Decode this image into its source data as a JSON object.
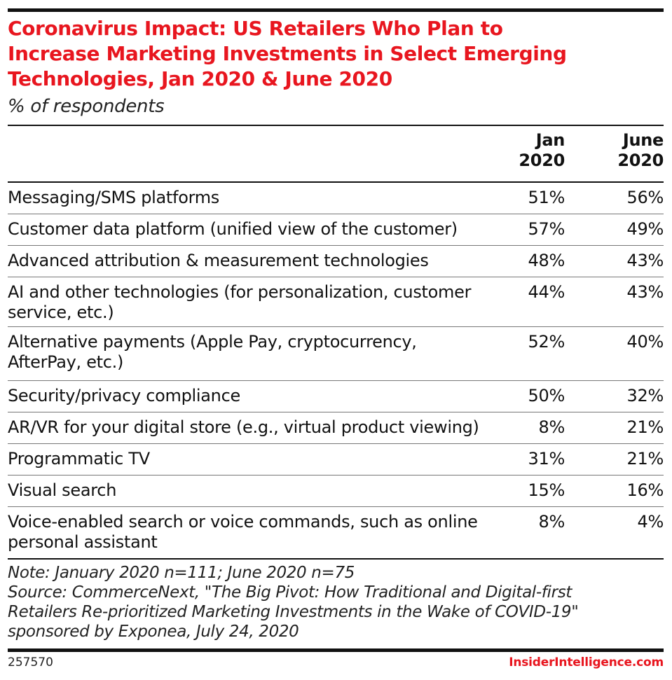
{
  "chart_data": {
    "type": "table",
    "title_lines": [
      "Coronavirus Impact: US Retailers Who Plan to",
      "Increase Marketing Investments in Select Emerging",
      "Technologies, Jan 2020 & June 2020"
    ],
    "subtitle": "% of respondents",
    "columns": [
      {
        "line1": "Jan",
        "line2": "2020"
      },
      {
        "line1": "June",
        "line2": "2020"
      }
    ],
    "rows": [
      {
        "label_lines": [
          "Messaging/SMS platforms"
        ],
        "jan": "51%",
        "june": "56%"
      },
      {
        "label_lines": [
          "Customer data platform (unified view of the customer)"
        ],
        "jan": "57%",
        "june": "49%"
      },
      {
        "label_lines": [
          "Advanced attribution & measurement technologies"
        ],
        "jan": "48%",
        "june": "43%"
      },
      {
        "label_lines": [
          "AI and other technologies (for personalization, customer",
          "service, etc.)"
        ],
        "jan": "44%",
        "june": "43%"
      },
      {
        "label_lines": [
          "Alternative payments (Apple Pay, cryptocurrency,",
          "AfterPay, etc.)"
        ],
        "jan": "52%",
        "june": "40%"
      },
      {
        "label_lines": [
          "Security/privacy compliance"
        ],
        "jan": "50%",
        "june": "32%"
      },
      {
        "label_lines": [
          "AR/VR for your digital store (e.g., virtual product viewing)"
        ],
        "jan": "8%",
        "june": "21%"
      },
      {
        "label_lines": [
          "Programmatic TV"
        ],
        "jan": "31%",
        "june": "21%"
      },
      {
        "label_lines": [
          "Visual search"
        ],
        "jan": "15%",
        "june": "16%"
      },
      {
        "label_lines": [
          "Voice-enabled search or voice commands, such as online",
          "personal assistant"
        ],
        "jan": "8%",
        "june": "4%"
      }
    ],
    "note_lines": [
      "Note: January 2020 n=111; June 2020 n=75",
      "Source: CommerceNext, \"The Big Pivot: How Traditional and Digital-first",
      "Retailers Re-prioritized Marketing Investments in the Wake of COVID-19\"",
      "sponsored by Exponea, July 24, 2020"
    ]
  },
  "footer": {
    "chart_id": "257570",
    "brand": "InsiderIntelligence.com"
  },
  "colors": {
    "title": "#e8161f",
    "brand": "#e8161f",
    "text": "#111111",
    "rules": "#111111"
  }
}
